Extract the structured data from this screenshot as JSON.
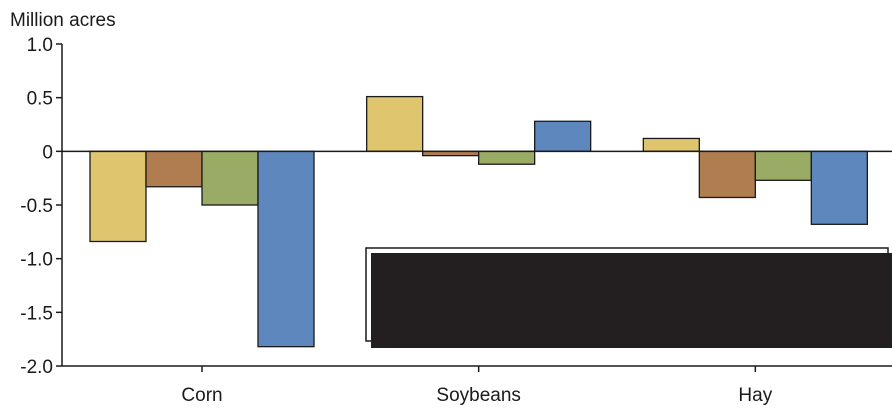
{
  "chart_data": {
    "type": "bar",
    "title": "",
    "ylabel": "Million acres",
    "xlabel": "",
    "ylim": [
      -2.0,
      1.0
    ],
    "yticks": [
      1.0,
      0.5,
      0,
      -0.5,
      -1.0,
      -1.5,
      -2.0
    ],
    "ytick_labels": [
      "1.0",
      "0.5",
      "0",
      "-0.5",
      "-1.0",
      "-1.5",
      "-2.0"
    ],
    "categories": [
      "Corn",
      "Soybeans",
      "Hay"
    ],
    "series": [
      {
        "color": "#dfc66e",
        "values": [
          -0.84,
          0.51,
          0.12
        ]
      },
      {
        "color": "#b07d50",
        "values": [
          -0.33,
          -0.04,
          -0.43
        ]
      },
      {
        "color": "#9aab66",
        "values": [
          -0.5,
          -0.12,
          -0.27
        ]
      },
      {
        "color": "#5d87bd",
        "values": [
          -1.82,
          0.28,
          -0.68
        ]
      }
    ],
    "grid": false,
    "legend": "bottom-right (obscured by a black box)",
    "colors": {
      "axis": "#1a1a1a",
      "bar_stroke": "#1a1a1a",
      "redaction_box": "#231f20"
    }
  }
}
